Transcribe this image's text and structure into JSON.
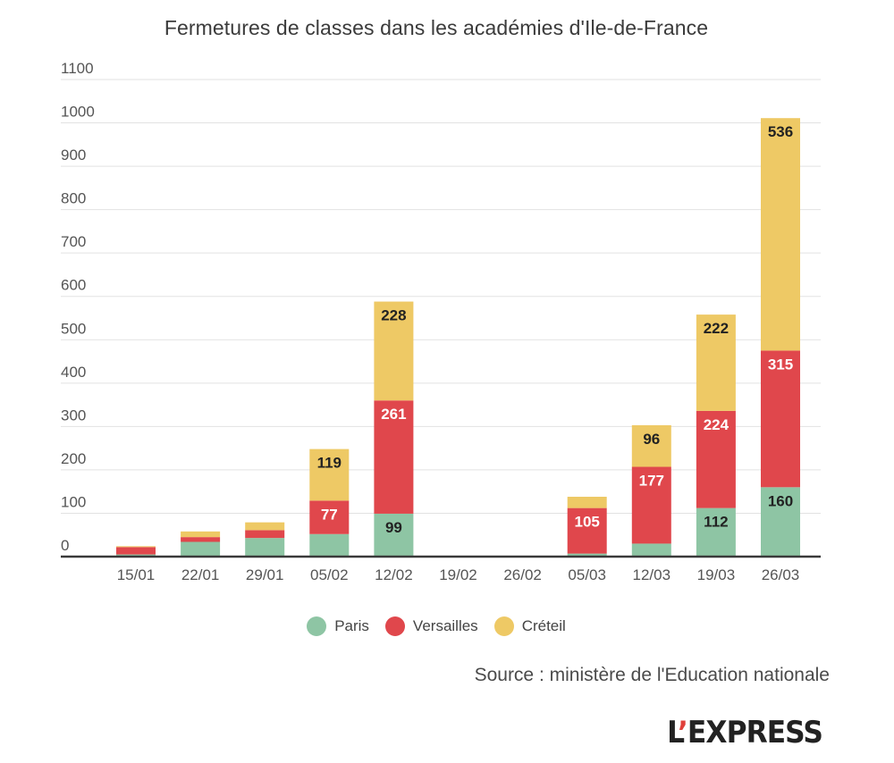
{
  "chart_data": {
    "type": "bar",
    "stacked": true,
    "title": "Fermetures de classes dans les académies d'Ile-de-France",
    "xlabel": "",
    "ylabel": "",
    "ylim": [
      0,
      1100
    ],
    "yticks": [
      0,
      100,
      200,
      300,
      400,
      500,
      600,
      700,
      800,
      900,
      1000,
      1100
    ],
    "grid": true,
    "legend_position": "bottom",
    "categories": [
      "15/01",
      "22/01",
      "29/01",
      "05/02",
      "12/02",
      "19/02",
      "26/02",
      "05/03",
      "12/03",
      "19/03",
      "26/03"
    ],
    "series": [
      {
        "name": "Paris",
        "color": "#8ec5a4",
        "label_color": "#222222",
        "values": [
          5,
          34,
          43,
          52,
          99,
          0,
          0,
          7,
          30,
          112,
          160
        ],
        "labels": [
          null,
          null,
          null,
          null,
          "99",
          null,
          null,
          null,
          null,
          "112",
          "160"
        ]
      },
      {
        "name": "Versailles",
        "color": "#e0474c",
        "label_color": "#ffffff",
        "values": [
          17,
          11,
          18,
          77,
          261,
          0,
          0,
          105,
          177,
          224,
          315
        ],
        "labels": [
          null,
          null,
          null,
          "77",
          "261",
          null,
          null,
          "105",
          "177",
          "224",
          "315"
        ]
      },
      {
        "name": "Créteil",
        "color": "#eec965",
        "label_color": "#222222",
        "values": [
          2,
          13,
          18,
          119,
          228,
          0,
          0,
          26,
          96,
          222,
          536
        ],
        "labels": [
          null,
          null,
          null,
          "119",
          "228",
          null,
          null,
          null,
          "96",
          "222",
          "536"
        ]
      }
    ]
  },
  "source": "Source : ministère de l'Education nationale",
  "logo": {
    "prefix": "L",
    "apostrophe": "’",
    "suffix": "EXPRESS"
  }
}
